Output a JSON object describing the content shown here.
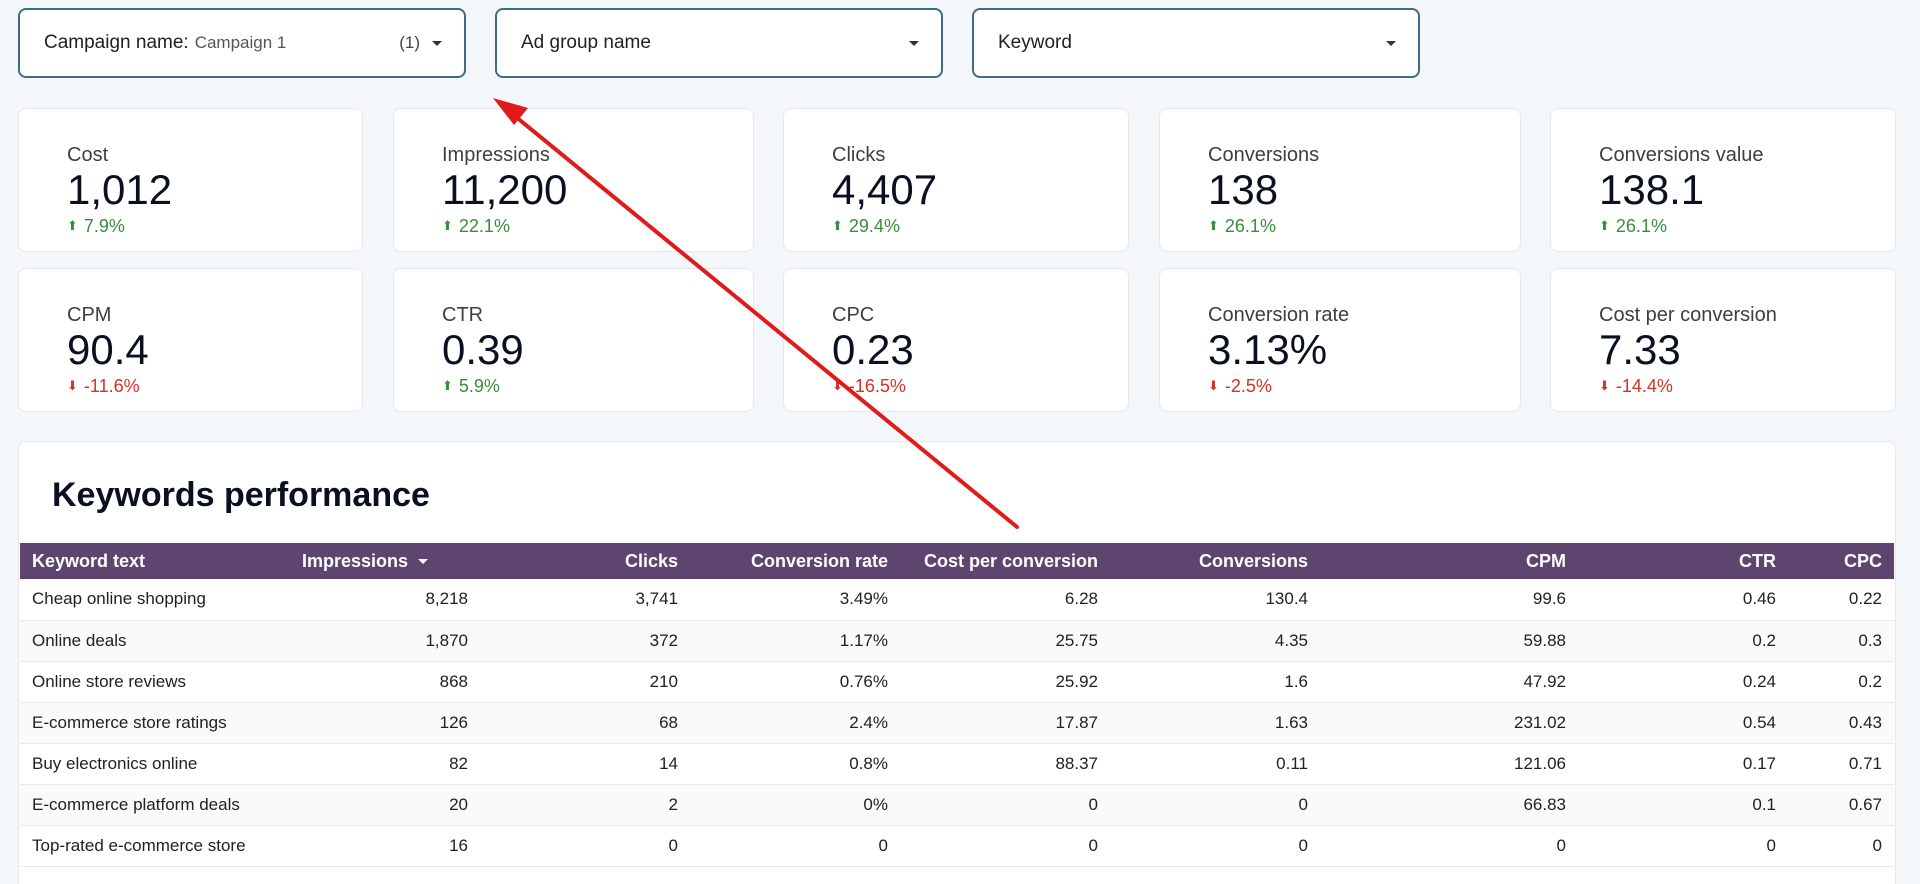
{
  "filters": {
    "campaign": {
      "label": "Campaign name",
      "selected": "Campaign 1",
      "count": "(1)"
    },
    "ad_group": {
      "label": "Ad group name"
    },
    "keyword": {
      "label": "Keyword"
    }
  },
  "scorecards": [
    {
      "label": "Cost",
      "value": "1,012",
      "delta": "7.9%",
      "direction": "up"
    },
    {
      "label": "Impressions",
      "value": "11,200",
      "delta": "22.1%",
      "direction": "up"
    },
    {
      "label": "Clicks",
      "value": "4,407",
      "delta": "29.4%",
      "direction": "up"
    },
    {
      "label": "Conversions",
      "value": "138",
      "delta": "26.1%",
      "direction": "up"
    },
    {
      "label": "Conversions value",
      "value": "138.1",
      "delta": "26.1%",
      "direction": "up"
    },
    {
      "label": "CPM",
      "value": "90.4",
      "delta": "-11.6%",
      "direction": "down"
    },
    {
      "label": "CTR",
      "value": "0.39",
      "delta": "5.9%",
      "direction": "up"
    },
    {
      "label": "CPC",
      "value": "0.23",
      "delta": "-16.5%",
      "direction": "down"
    },
    {
      "label": "Conversion rate",
      "value": "3.13%",
      "delta": "-2.5%",
      "direction": "down"
    },
    {
      "label": "Cost per conversion",
      "value": "7.33",
      "delta": "-14.4%",
      "direction": "down"
    }
  ],
  "table": {
    "title": "Keywords performance",
    "columns": [
      "Keyword text",
      "Impressions",
      "Clicks",
      "Conversion rate",
      "Cost per conversion",
      "Conversions",
      "CPM",
      "CTR",
      "CPC"
    ],
    "rows": [
      [
        "Cheap online shopping",
        "8,218",
        "3,741",
        "3.49%",
        "6.28",
        "130.4",
        "99.6",
        "0.46",
        "0.22"
      ],
      [
        "Online deals",
        "1,870",
        "372",
        "1.17%",
        "25.75",
        "4.35",
        "59.88",
        "0.2",
        "0.3"
      ],
      [
        "Online store reviews",
        "868",
        "210",
        "0.76%",
        "25.92",
        "1.6",
        "47.92",
        "0.24",
        "0.2"
      ],
      [
        "E-commerce store ratings",
        "126",
        "68",
        "2.4%",
        "17.87",
        "1.63",
        "231.02",
        "0.54",
        "0.43"
      ],
      [
        "Buy electronics online",
        "82",
        "14",
        "0.8%",
        "88.37",
        "0.11",
        "121.06",
        "0.17",
        "0.71"
      ],
      [
        "E-commerce platform deals",
        "20",
        "2",
        "0%",
        "0",
        "0",
        "66.83",
        "0.1",
        "0.67"
      ],
      [
        "Top-rated e-commerce store",
        "16",
        "0",
        "0",
        "0",
        "0",
        "0",
        "0",
        "0"
      ]
    ]
  },
  "colors": {
    "up": "#3a8d3a",
    "down": "#d93025",
    "header": "#5e4570",
    "annotation_arrow": "#e01b1b"
  }
}
